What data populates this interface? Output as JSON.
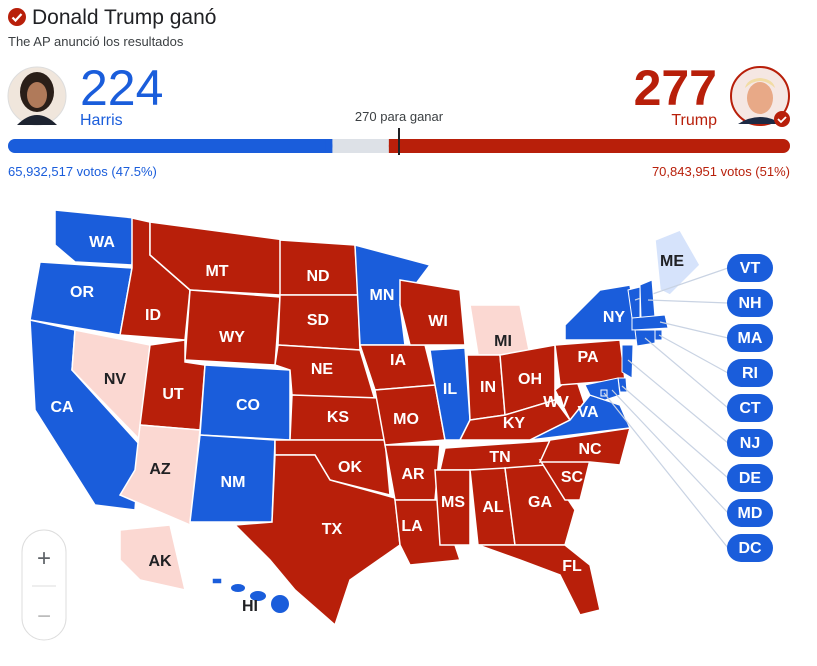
{
  "header": {
    "title": "Donald Trump ganó",
    "subtitle": "The AP anunció los resultados"
  },
  "harris": {
    "name": "Harris",
    "electoral_votes": 224,
    "votes_label": "65,932,517 votos (47.5%)",
    "color": "#1a5ddb"
  },
  "trump": {
    "name": "Trump",
    "electoral_votes": 277,
    "votes_label": "70,843,951 votos (51%)",
    "color": "#b81f0a"
  },
  "to_win": {
    "value": 270,
    "label": "270 para ganar"
  },
  "uncalled_color": "#dde1e7",
  "states": [
    {
      "label": "WA",
      "color": "#1a5ddb"
    },
    {
      "label": "OR",
      "color": "#1a5ddb"
    },
    {
      "label": "CA",
      "color": "#1a5ddb"
    },
    {
      "label": "NV",
      "color": "#fbd8d2"
    },
    {
      "label": "ID",
      "color": "#b81f0a"
    },
    {
      "label": "MT",
      "color": "#b81f0a"
    },
    {
      "label": "WY",
      "color": "#b81f0a"
    },
    {
      "label": "UT",
      "color": "#b81f0a"
    },
    {
      "label": "AZ",
      "color": "#fbd8d2"
    },
    {
      "label": "CO",
      "color": "#1a5ddb"
    },
    {
      "label": "NM",
      "color": "#1a5ddb"
    },
    {
      "label": "ND",
      "color": "#b81f0a"
    },
    {
      "label": "SD",
      "color": "#b81f0a"
    },
    {
      "label": "NE",
      "color": "#b81f0a"
    },
    {
      "label": "KS",
      "color": "#b81f0a"
    },
    {
      "label": "OK",
      "color": "#b81f0a"
    },
    {
      "label": "TX",
      "color": "#b81f0a"
    },
    {
      "label": "MN",
      "color": "#1a5ddb"
    },
    {
      "label": "IA",
      "color": "#b81f0a"
    },
    {
      "label": "MO",
      "color": "#b81f0a"
    },
    {
      "label": "AR",
      "color": "#b81f0a"
    },
    {
      "label": "LA",
      "color": "#b81f0a"
    },
    {
      "label": "WI",
      "color": "#b81f0a"
    },
    {
      "label": "IL",
      "color": "#1a5ddb"
    },
    {
      "label": "MI",
      "color": "#fbd8d2"
    },
    {
      "label": "IN",
      "color": "#b81f0a"
    },
    {
      "label": "OH",
      "color": "#b81f0a"
    },
    {
      "label": "KY",
      "color": "#b81f0a"
    },
    {
      "label": "TN",
      "color": "#b81f0a"
    },
    {
      "label": "MS",
      "color": "#b81f0a"
    },
    {
      "label": "AL",
      "color": "#b81f0a"
    },
    {
      "label": "GA",
      "color": "#b81f0a"
    },
    {
      "label": "FL",
      "color": "#b81f0a"
    },
    {
      "label": "SC",
      "color": "#b81f0a"
    },
    {
      "label": "NC",
      "color": "#b81f0a"
    },
    {
      "label": "WV",
      "color": "#b81f0a"
    },
    {
      "label": "VA",
      "color": "#1a5ddb"
    },
    {
      "label": "PA",
      "color": "#b81f0a"
    },
    {
      "label": "NY",
      "color": "#1a5ddb"
    },
    {
      "label": "ME",
      "color": "#d6e3fb"
    },
    {
      "label": "AK",
      "color": "#fbd8d2"
    },
    {
      "label": "HI",
      "color": "#1a5ddb"
    }
  ],
  "small_states": [
    {
      "label": "VT",
      "color": "#1a5ddb"
    },
    {
      "label": "NH",
      "color": "#1a5ddb"
    },
    {
      "label": "MA",
      "color": "#1a5ddb"
    },
    {
      "label": "RI",
      "color": "#1a5ddb"
    },
    {
      "label": "CT",
      "color": "#1a5ddb"
    },
    {
      "label": "NJ",
      "color": "#1a5ddb"
    },
    {
      "label": "DE",
      "color": "#1a5ddb"
    },
    {
      "label": "MD",
      "color": "#1a5ddb"
    },
    {
      "label": "DC",
      "color": "#1a5ddb"
    }
  ],
  "zoom": {
    "in": "+",
    "out": "−"
  }
}
